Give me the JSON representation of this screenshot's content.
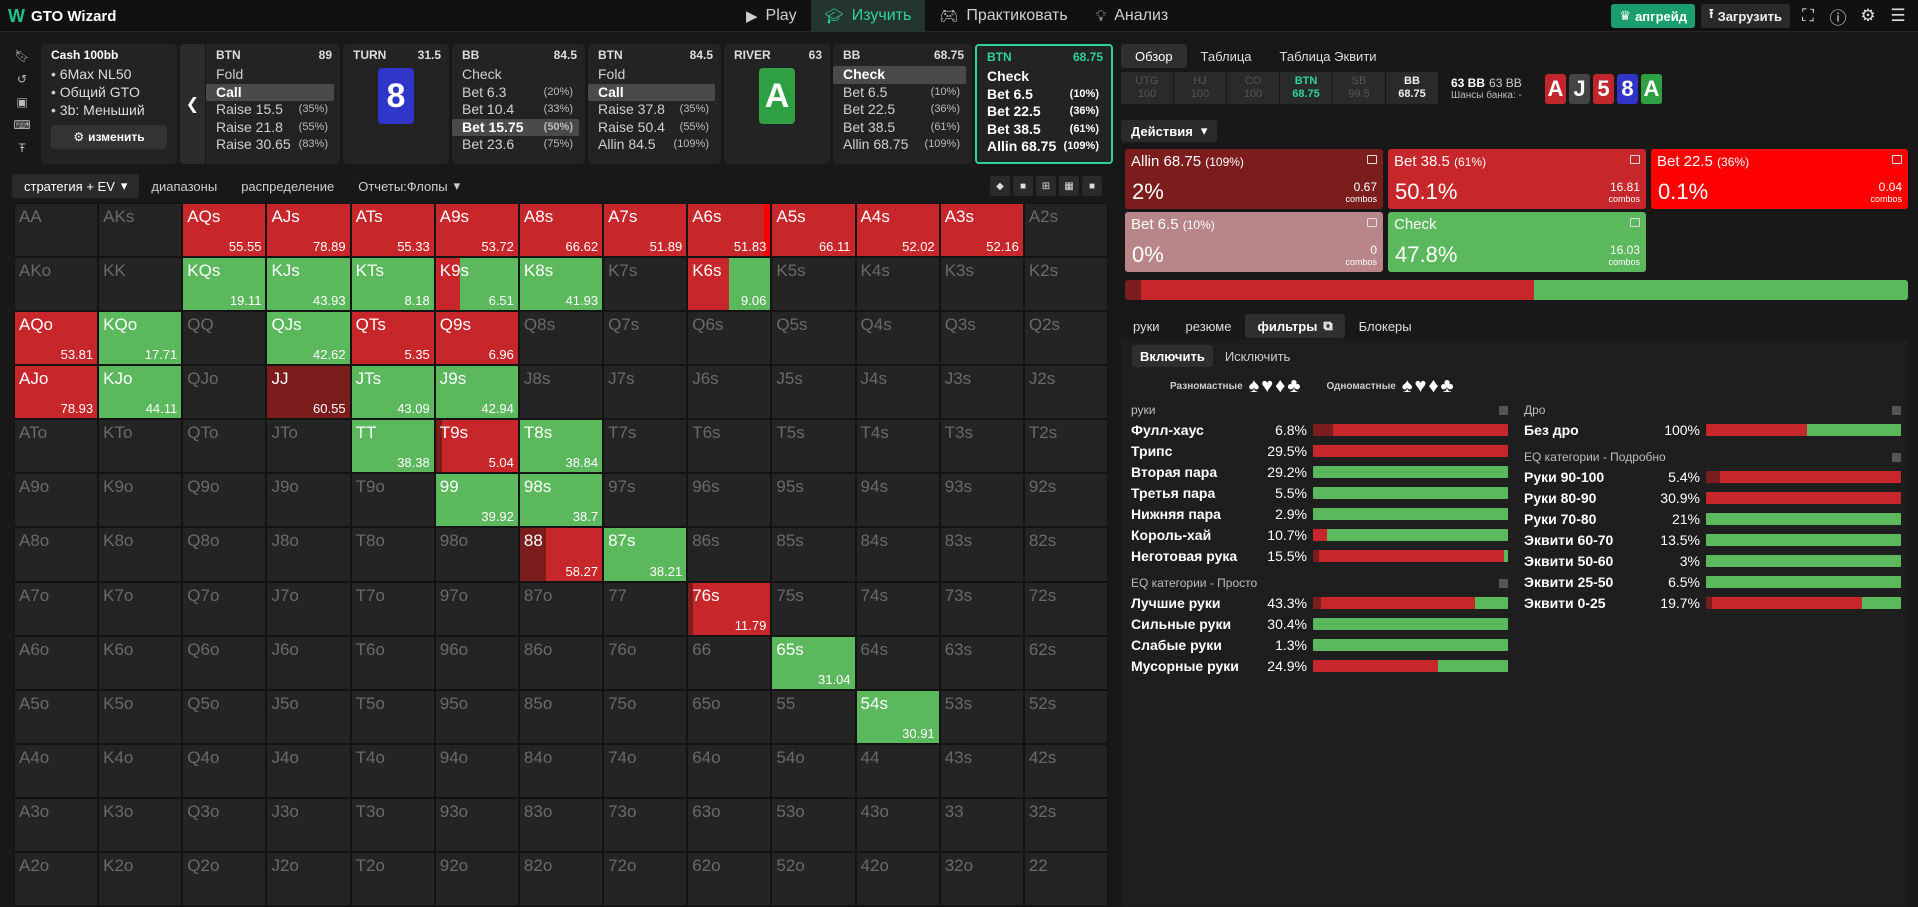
{
  "topbar": {
    "logo": "GTO Wizard",
    "nav": [
      {
        "label": "Play",
        "icon": "play-icon",
        "active": false
      },
      {
        "label": "Изучить",
        "icon": "study-icon",
        "active": true
      },
      {
        "label": "Практиковать",
        "icon": "gamepad-icon",
        "active": false
      },
      {
        "label": "Анализ",
        "icon": "bulb-icon",
        "active": false
      }
    ],
    "upgrade": "апгрейд",
    "load": "Загрузить"
  },
  "info": {
    "title": "Cash  100bb",
    "items": [
      "6Max NL50",
      "Общий GTO",
      "3b: Меньший"
    ],
    "edit": "изменить"
  },
  "history": [
    {
      "pos": "BTN",
      "stack": "89",
      "items": [
        {
          "l": "Fold",
          "p": ""
        },
        {
          "l": "Call",
          "p": "",
          "sel": true
        },
        {
          "l": "Raise 15.5",
          "p": "(35%)"
        },
        {
          "l": "Raise 21.8",
          "p": "(55%)"
        },
        {
          "l": "Raise 30.65",
          "p": "(83%)"
        }
      ]
    },
    {
      "pos": "TURN",
      "stack": "31.5",
      "card": {
        "rank": "8",
        "color": "#2f35c8"
      }
    },
    {
      "pos": "BB",
      "stack": "84.5",
      "items": [
        {
          "l": "Check",
          "p": ""
        },
        {
          "l": "Bet 6.3",
          "p": "(20%)"
        },
        {
          "l": "Bet 10.4",
          "p": "(33%)"
        },
        {
          "l": "Bet 15.75",
          "p": "(50%)",
          "sel": true
        },
        {
          "l": "Bet 23.6",
          "p": "(75%)"
        }
      ]
    },
    {
      "pos": "BTN",
      "stack": "84.5",
      "items": [
        {
          "l": "Fold",
          "p": ""
        },
        {
          "l": "Call",
          "p": "",
          "sel": true
        },
        {
          "l": "Raise 37.8",
          "p": "(35%)"
        },
        {
          "l": "Raise 50.4",
          "p": "(55%)"
        },
        {
          "l": "Allin 84.5",
          "p": "(109%)"
        }
      ]
    },
    {
      "pos": "RIVER",
      "stack": "63",
      "card": {
        "rank": "A",
        "color": "#2ea043"
      }
    },
    {
      "pos": "BB",
      "stack": "68.75",
      "items": [
        {
          "l": "Check",
          "p": "",
          "sel": true
        },
        {
          "l": "Bet 6.5",
          "p": "(10%)"
        },
        {
          "l": "Bet 22.5",
          "p": "(36%)"
        },
        {
          "l": "Bet 38.5",
          "p": "(61%)"
        },
        {
          "l": "Allin 68.75",
          "p": "(109%)"
        }
      ]
    },
    {
      "pos": "BTN",
      "stack": "68.75",
      "current": true,
      "items": [
        {
          "l": "Check",
          "p": ""
        },
        {
          "l": "Bet 6.5",
          "p": "(10%)"
        },
        {
          "l": "Bet 22.5",
          "p": "(36%)"
        },
        {
          "l": "Bet 38.5",
          "p": "(61%)"
        },
        {
          "l": "Allin 68.75",
          "p": "(109%)"
        }
      ]
    }
  ],
  "left_tabs": [
    {
      "label": "стратегия + EV",
      "dd": true,
      "active": true
    },
    {
      "label": "диапазоны"
    },
    {
      "label": "распределение"
    },
    {
      "label": "Отчеты:Флопы",
      "dd": true
    }
  ],
  "colors": {
    "check": "#5cb85c",
    "bet_small": "#d23c3c",
    "bet_mid": "#c7262a",
    "allin": "#7b1d1d",
    "bet6": "#b88688",
    "bet22": "#ff0000",
    "empty": "#242424"
  },
  "ranks": [
    "A",
    "K",
    "Q",
    "J",
    "T",
    "9",
    "8",
    "7",
    "6",
    "5",
    "4",
    "3",
    "2"
  ],
  "grid": {
    "AA": {},
    "AKs": {},
    "AQs": {
      "ev": "55.55",
      "mix": [
        [
          "bet_mid",
          1
        ]
      ]
    },
    "AJs": {
      "ev": "78.89",
      "mix": [
        [
          "bet_mid",
          1
        ]
      ]
    },
    "ATs": {
      "ev": "55.33",
      "mix": [
        [
          "bet_mid",
          1
        ]
      ]
    },
    "A9s": {
      "ev": "53.72",
      "mix": [
        [
          "bet_mid",
          1
        ]
      ]
    },
    "A8s": {
      "ev": "66.62",
      "mix": [
        [
          "bet_mid",
          1
        ]
      ]
    },
    "A7s": {
      "ev": "51.89",
      "mix": [
        [
          "bet_mid",
          1
        ]
      ]
    },
    "A6s": {
      "ev": "51.83",
      "mix": [
        [
          "bet_mid",
          0.92
        ],
        [
          "bet22",
          0.08
        ]
      ]
    },
    "A5s": {
      "ev": "66.11",
      "mix": [
        [
          "bet_mid",
          1
        ]
      ]
    },
    "A4s": {
      "ev": "52.02",
      "mix": [
        [
          "bet_mid",
          1
        ]
      ]
    },
    "A3s": {
      "ev": "52.16",
      "mix": [
        [
          "bet_mid",
          1
        ]
      ]
    },
    "KQs": {
      "ev": "19.11",
      "mix": [
        [
          "check",
          1
        ]
      ]
    },
    "KJs": {
      "ev": "43.93",
      "mix": [
        [
          "check",
          1
        ]
      ]
    },
    "KTs": {
      "ev": "8.18",
      "mix": [
        [
          "check",
          1
        ]
      ]
    },
    "K9s": {
      "ev": "6.51",
      "mix": [
        [
          "bet_mid",
          0.3
        ],
        [
          "check",
          0.7
        ]
      ]
    },
    "K8s": {
      "ev": "41.93",
      "mix": [
        [
          "check",
          1
        ]
      ]
    },
    "K6s": {
      "ev": "9.06",
      "mix": [
        [
          "bet_mid",
          0.5
        ],
        [
          "check",
          0.5
        ]
      ]
    },
    "AQo": {
      "ev": "53.81",
      "mix": [
        [
          "bet_mid",
          1
        ]
      ]
    },
    "KQo": {
      "ev": "17.71",
      "mix": [
        [
          "check",
          1
        ]
      ]
    },
    "QJs": {
      "ev": "42.62",
      "mix": [
        [
          "check",
          1
        ]
      ]
    },
    "QTs": {
      "ev": "5.35",
      "mix": [
        [
          "bet_mid",
          1
        ]
      ]
    },
    "Q9s": {
      "ev": "6.96",
      "mix": [
        [
          "bet_mid",
          1
        ]
      ]
    },
    "AJo": {
      "ev": "78.93",
      "mix": [
        [
          "bet_mid",
          1
        ]
      ]
    },
    "KJo": {
      "ev": "44.11",
      "mix": [
        [
          "check",
          1
        ]
      ]
    },
    "JJ": {
      "ev": "60.55",
      "mix": [
        [
          "allin",
          1
        ]
      ]
    },
    "JTs": {
      "ev": "43.09",
      "mix": [
        [
          "check",
          1
        ]
      ]
    },
    "J9s": {
      "ev": "42.94",
      "mix": [
        [
          "check",
          1
        ]
      ]
    },
    "TT": {
      "ev": "38.38",
      "mix": [
        [
          "check",
          1
        ]
      ]
    },
    "T9s": {
      "ev": "5.04",
      "mix": [
        [
          "allin",
          0.08
        ],
        [
          "bet_mid",
          0.92
        ]
      ]
    },
    "T8s": {
      "ev": "38.84",
      "mix": [
        [
          "check",
          1
        ]
      ]
    },
    "99": {
      "ev": "39.92",
      "mix": [
        [
          "check",
          1
        ]
      ]
    },
    "98s": {
      "ev": "38.7",
      "mix": [
        [
          "check",
          1
        ]
      ]
    },
    "88": {
      "ev": "58.27",
      "mix": [
        [
          "allin",
          0.32
        ],
        [
          "bet_mid",
          0.68
        ]
      ]
    },
    "87s": {
      "ev": "38.21",
      "mix": [
        [
          "check",
          1
        ]
      ]
    },
    "76s": {
      "ev": "11.79",
      "mix": [
        [
          "allin",
          0.06
        ],
        [
          "bet_mid",
          0.94
        ]
      ]
    },
    "65s": {
      "ev": "31.04",
      "mix": [
        [
          "check",
          1
        ]
      ]
    },
    "54s": {
      "ev": "30.91",
      "mix": [
        [
          "check",
          1
        ]
      ]
    }
  },
  "right": {
    "tabs": [
      {
        "label": "Обзор",
        "active": true
      },
      {
        "label": "Таблица"
      },
      {
        "label": "Таблица Эквити"
      }
    ],
    "positions": [
      {
        "p": "UTG",
        "s": "100"
      },
      {
        "p": "HJ",
        "s": "100"
      },
      {
        "p": "CO",
        "s": "100"
      },
      {
        "p": "BTN",
        "s": "68.75",
        "active": true
      },
      {
        "p": "SB",
        "s": "99.5"
      },
      {
        "p": "BB",
        "s": "68.75",
        "bb": true
      }
    ],
    "pot": {
      "a": "63 BB",
      "b": "63 BB",
      "label": "Шансы банка:",
      "val": "-"
    },
    "board": [
      {
        "r": "A",
        "c": "#c0262c"
      },
      {
        "r": "J",
        "c": "#444"
      },
      {
        "r": "5",
        "c": "#c0262c"
      },
      {
        "r": "8",
        "c": "#2f35c8"
      },
      {
        "r": "A",
        "c": "#2ea043"
      }
    ],
    "actions_label": "Действия",
    "action_boxes": [
      {
        "label": "Allin 68.75",
        "pct": "(109%)",
        "freq": "2%",
        "combos": "0.67",
        "c": "#7b1d1d"
      },
      {
        "label": "Bet 38.5",
        "pct": "(61%)",
        "freq": "50.1%",
        "combos": "16.81",
        "c": "#c7262a"
      },
      {
        "label": "Bet 22.5",
        "pct": "(36%)",
        "freq": "0.1%",
        "combos": "0.04",
        "c": "#ff0000"
      },
      {
        "label": "Bet 6.5",
        "pct": "(10%)",
        "freq": "0%",
        "combos": "0",
        "c": "#b88688"
      },
      {
        "label": "Check",
        "pct": "",
        "freq": "47.8%",
        "combos": "16.03",
        "c": "#5cb85c"
      }
    ],
    "combos_word": "combos",
    "freqbar": [
      [
        "#7b1d1d",
        2
      ],
      [
        "#c7262a",
        50.2
      ],
      [
        "#5cb85c",
        47.8
      ]
    ],
    "tabs2": [
      {
        "label": "руки"
      },
      {
        "label": "резюме"
      },
      {
        "label": "фильтры",
        "active": true
      },
      {
        "label": "Блокеры"
      }
    ],
    "include": "Включить",
    "exclude": "Исключить",
    "suits_off": "Разномастные",
    "suits_on": "Одномастные",
    "sections": [
      {
        "title": "руки",
        "col": 0,
        "rows": [
          {
            "l": "Фулл-хаус",
            "p": "6.8%",
            "bar": [
              [
                "#7b1d1d",
                10
              ],
              [
                "#c7262a",
                90
              ]
            ]
          },
          {
            "l": "Трипс",
            "p": "29.5%",
            "bar": [
              [
                "#c7262a",
                100
              ]
            ]
          },
          {
            "l": "Вторая пара",
            "p": "29.2%",
            "bar": [
              [
                "#5cb85c",
                100
              ]
            ]
          },
          {
            "l": "Третья пара",
            "p": "5.5%",
            "bar": [
              [
                "#5cb85c",
                100
              ]
            ]
          },
          {
            "l": "Нижняя пара",
            "p": "2.9%",
            "bar": [
              [
                "#5cb85c",
                100
              ]
            ]
          },
          {
            "l": "Король-хай",
            "p": "10.7%",
            "bar": [
              [
                "#c7262a",
                7
              ],
              [
                "#5cb85c",
                93
              ]
            ]
          },
          {
            "l": "Неготовая рука",
            "p": "15.5%",
            "bar": [
              [
                "#7b1d1d",
                3
              ],
              [
                "#c7262a",
                95
              ],
              [
                "#5cb85c",
                2
              ]
            ]
          }
        ]
      },
      {
        "title": "EQ категории - Просто",
        "col": 0,
        "rows": [
          {
            "l": "Лучшие руки",
            "p": "43.3%",
            "bar": [
              [
                "#7b1d1d",
                4
              ],
              [
                "#c7262a",
                79
              ],
              [
                "#5cb85c",
                17
              ]
            ]
          },
          {
            "l": "Сильные руки",
            "p": "30.4%",
            "bar": [
              [
                "#5cb85c",
                100
              ]
            ]
          },
          {
            "l": "Слабые руки",
            "p": "1.3%",
            "bar": [
              [
                "#5cb85c",
                100
              ]
            ]
          },
          {
            "l": "Мусорные руки",
            "p": "24.9%",
            "bar": [
              [
                "#c7262a",
                64
              ],
              [
                "#5cb85c",
                36
              ]
            ]
          }
        ]
      },
      {
        "title": "Дро",
        "col": 1,
        "rows": [
          {
            "l": "Без дро",
            "p": "100%",
            "bar": [
              [
                "#c7262a",
                52
              ],
              [
                "#5cb85c",
                48
              ]
            ]
          }
        ]
      },
      {
        "title": "EQ категории - Подробно",
        "col": 1,
        "rows": [
          {
            "l": "Руки 90-100",
            "p": "5.4%",
            "bar": [
              [
                "#7b1d1d",
                7
              ],
              [
                "#c7262a",
                93
              ]
            ]
          },
          {
            "l": "Руки 80-90",
            "p": "30.9%",
            "bar": [
              [
                "#c7262a",
                100
              ]
            ]
          },
          {
            "l": "Руки 70-80",
            "p": "21%",
            "bar": [
              [
                "#5cb85c",
                100
              ]
            ]
          },
          {
            "l": "Эквити 60-70",
            "p": "13.5%",
            "bar": [
              [
                "#5cb85c",
                100
              ]
            ]
          },
          {
            "l": "Эквити 50-60",
            "p": "3%",
            "bar": [
              [
                "#5cb85c",
                100
              ]
            ]
          },
          {
            "l": "Эквити 25-50",
            "p": "6.5%",
            "bar": [
              [
                "#5cb85c",
                100
              ]
            ]
          },
          {
            "l": "Эквити 0-25",
            "p": "19.7%",
            "bar": [
              [
                "#7b1d1d",
                3
              ],
              [
                "#c7262a",
                77
              ],
              [
                "#5cb85c",
                20
              ]
            ]
          }
        ]
      }
    ]
  }
}
